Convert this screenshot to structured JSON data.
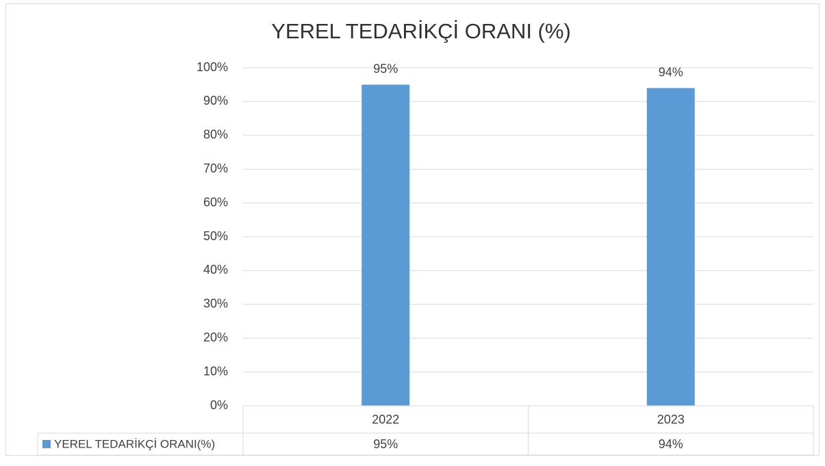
{
  "chart_data": {
    "type": "bar",
    "title": "YEREL TEDARİKÇİ ORANI (%)",
    "categories": [
      "2022",
      "2023"
    ],
    "series": [
      {
        "name": "YEREL TEDARİKÇİ ORANI(%)",
        "color": "#5b9bd5",
        "values": [
          95,
          94
        ],
        "value_labels": [
          "95%",
          "94%"
        ]
      }
    ],
    "ylim": [
      0,
      100
    ],
    "yticks": [
      {
        "value": 0,
        "label": "0%"
      },
      {
        "value": 10,
        "label": "10%"
      },
      {
        "value": 20,
        "label": "20%"
      },
      {
        "value": 30,
        "label": "30%"
      },
      {
        "value": 40,
        "label": "40%"
      },
      {
        "value": 50,
        "label": "50%"
      },
      {
        "value": 60,
        "label": "60%"
      },
      {
        "value": 70,
        "label": "70%"
      },
      {
        "value": 80,
        "label": "80%"
      },
      {
        "value": 90,
        "label": "90%"
      },
      {
        "value": 100,
        "label": "100%"
      }
    ],
    "grid": true,
    "data_table": true
  }
}
